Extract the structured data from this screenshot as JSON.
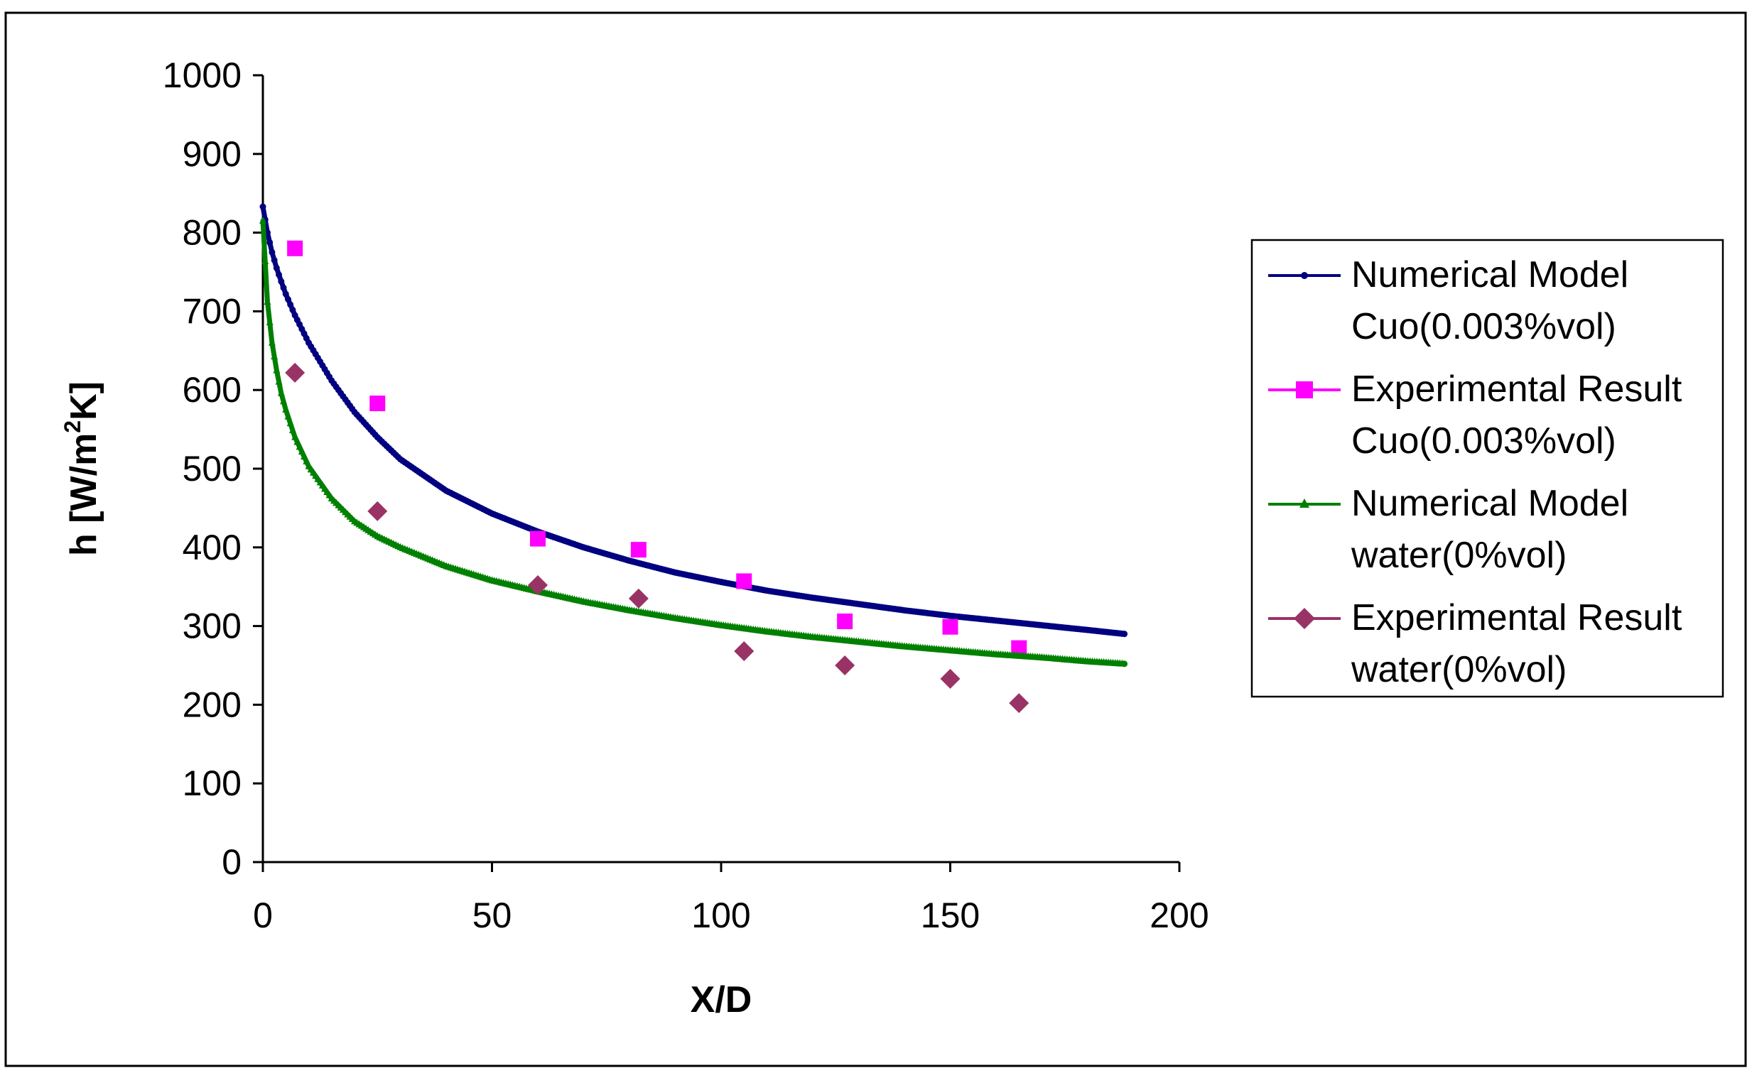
{
  "chart_data": {
    "type": "scatter",
    "xlabel": "X/D",
    "ylabel_main": "h [W/m",
    "ylabel_sup": "2",
    "ylabel_tail": "K]",
    "xlim": [
      0,
      200
    ],
    "ylim": [
      0,
      1000
    ],
    "x_ticks": [
      0,
      50,
      100,
      150,
      200
    ],
    "y_ticks": [
      0,
      100,
      200,
      300,
      400,
      500,
      600,
      700,
      800,
      900,
      1000
    ],
    "x_tick_labels": [
      "0",
      "50",
      "100",
      "150",
      "200"
    ],
    "y_tick_labels": [
      "0",
      "100",
      "200",
      "300",
      "400",
      "500",
      "600",
      "700",
      "800",
      "900",
      "1000"
    ],
    "grid": false,
    "legend_position": "right",
    "series": [
      {
        "name_line1": "Numerical Model",
        "name_line2": "Cuo(0.003%vol)",
        "style": "line-dot",
        "color": "#000080",
        "x": [
          0,
          1,
          2,
          3,
          4,
          5,
          7,
          10,
          15,
          20,
          25,
          30,
          40,
          50,
          60,
          70,
          80,
          90,
          100,
          110,
          120,
          130,
          140,
          150,
          160,
          170,
          180,
          188
        ],
        "y": [
          833,
          800,
          775,
          755,
          738,
          722,
          695,
          660,
          612,
          572,
          540,
          512,
          472,
          443,
          420,
          400,
          383,
          368,
          356,
          345,
          336,
          328,
          320,
          313,
          307,
          301,
          295,
          290
        ]
      },
      {
        "name_line1": "Experimental Result",
        "name_line2": "Cuo(0.003%vol)",
        "style": "square",
        "color": "#ff00ff",
        "x": [
          7,
          25,
          60,
          82,
          105,
          127,
          150,
          165
        ],
        "y": [
          780,
          583,
          411,
          397,
          357,
          306,
          299,
          272
        ]
      },
      {
        "name_line1": "Numerical Model",
        "name_line2": "water(0%vol)",
        "style": "line-triangle",
        "color": "#008000",
        "x": [
          0,
          1,
          2,
          3,
          4,
          5,
          7,
          10,
          15,
          20,
          25,
          30,
          40,
          50,
          60,
          70,
          80,
          90,
          100,
          110,
          120,
          130,
          140,
          150,
          160,
          170,
          180,
          188
        ],
        "y": [
          815,
          712,
          660,
          625,
          596,
          575,
          540,
          503,
          462,
          433,
          414,
          400,
          376,
          358,
          344,
          331,
          320,
          310,
          301,
          293,
          286,
          280,
          274,
          269,
          264,
          260,
          255,
          252
        ]
      },
      {
        "name_line1": "Experimental Result",
        "name_line2": "water(0%vol)",
        "style": "diamond",
        "color": "#993366",
        "x": [
          7,
          25,
          60,
          82,
          105,
          127,
          150,
          165
        ],
        "y": [
          622,
          446,
          352,
          335,
          268,
          250,
          233,
          202
        ]
      }
    ]
  }
}
